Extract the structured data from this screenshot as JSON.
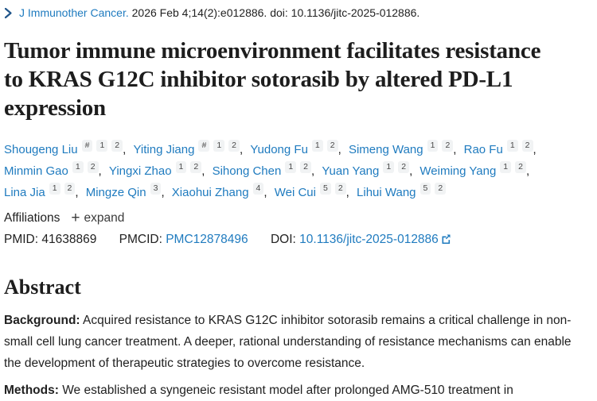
{
  "citation": {
    "journal_link": "J Immunother Cancer.",
    "details": " 2026 Feb 4;14(2):e012886. doi: 10.1136/jitc-2025-012886."
  },
  "title": "Tumor immune microenvironment facilitates resistance to KRAS G12C inhibitor sotorasib by altered PD-L1 expression",
  "authors": [
    {
      "name": "Shougeng Liu",
      "sups": [
        "#",
        "1",
        "2"
      ]
    },
    {
      "name": "Yiting Jiang",
      "sups": [
        "#",
        "1",
        "2"
      ]
    },
    {
      "name": "Yudong Fu",
      "sups": [
        "1",
        "2"
      ]
    },
    {
      "name": "Simeng Wang",
      "sups": [
        "1",
        "2"
      ]
    },
    {
      "name": "Rao Fu",
      "sups": [
        "1",
        "2"
      ]
    },
    {
      "name": "Minmin Gao",
      "sups": [
        "1",
        "2"
      ]
    },
    {
      "name": "Yingxi Zhao",
      "sups": [
        "1",
        "2"
      ]
    },
    {
      "name": "Sihong Chen",
      "sups": [
        "1",
        "2"
      ]
    },
    {
      "name": "Yuan Yang",
      "sups": [
        "1",
        "2"
      ]
    },
    {
      "name": "Weiming Yang",
      "sups": [
        "1",
        "2"
      ]
    },
    {
      "name": "Lina Jia",
      "sups": [
        "1",
        "2"
      ]
    },
    {
      "name": "Mingze Qin",
      "sups": [
        "3"
      ]
    },
    {
      "name": "Xiaohui Zhang",
      "sups": [
        "4"
      ]
    },
    {
      "name": "Wei Cui",
      "sups": [
        "5",
        "2"
      ]
    },
    {
      "name": "Lihui Wang",
      "sups": [
        "5",
        "2"
      ]
    }
  ],
  "affiliations": {
    "label": "Affiliations",
    "plus_icon": "+",
    "expand_label": "expand"
  },
  "ids": {
    "pmid_label": "PMID:",
    "pmid_value": "41638869",
    "pmcid_label": "PMCID:",
    "pmcid_value": "PMC12878496",
    "doi_label": "DOI:",
    "doi_value": "10.1136/jitc-2025-012886"
  },
  "abstract": {
    "heading": "Abstract",
    "sections": [
      {
        "label": "Background:",
        "text": "Acquired resistance to KRAS G12C inhibitor sotorasib remains a critical challenge in non-small cell lung cancer treatment. A deeper, rational understanding of resistance mechanisms can enable the development of therapeutic strategies to overcome resistance."
      },
      {
        "label": "Methods:",
        "text": "We established a syngeneic resistant model after prolonged AMG-510 treatment in"
      }
    ]
  },
  "colors": {
    "link_blue": "#1f7bbf",
    "chevron_blue": "#20558a",
    "text_dark": "#212121",
    "badge_bg": "#f1f3f4",
    "badge_text": "#4a4a4a"
  }
}
